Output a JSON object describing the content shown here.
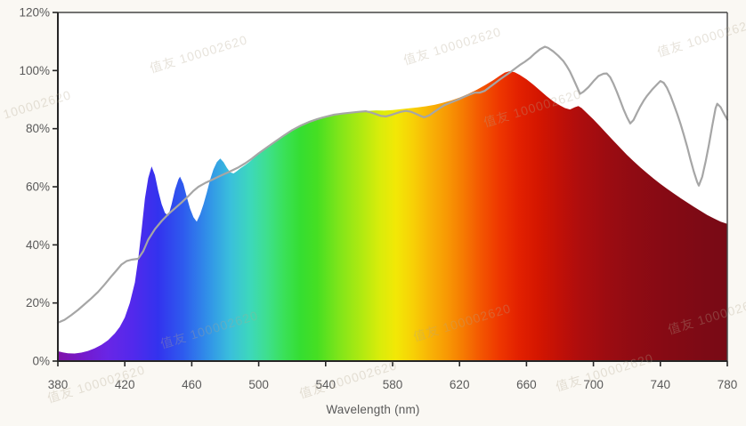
{
  "figure": {
    "background": "#faf8f3",
    "plot_background": "#ffffff",
    "axis_color": "#262626",
    "border_color": "#454545",
    "tick_label_color": "#595959",
    "watermark": {
      "text": "值友 100002620",
      "color": "#b3a68e",
      "opacity": 0.32,
      "rotation_deg": -17,
      "positions": [
        [
          170,
          82
        ],
        [
          455,
          73
        ],
        [
          740,
          64
        ],
        [
          -28,
          144
        ],
        [
          545,
          143
        ],
        [
          182,
          392
        ],
        [
          466,
          384
        ],
        [
          752,
          376
        ],
        [
          55,
          453
        ],
        [
          338,
          448
        ],
        [
          626,
          440
        ]
      ]
    }
  },
  "chart_data": {
    "type": "area",
    "title": "",
    "xlabel": "Wavelength (nm)",
    "ylabel": "",
    "xlim": [
      380,
      780
    ],
    "ylim_percent": [
      0,
      120
    ],
    "x_ticks": [
      380,
      420,
      460,
      500,
      540,
      580,
      620,
      660,
      700,
      740,
      780
    ],
    "y_ticks": [
      {
        "value": 0,
        "label": "0%"
      },
      {
        "value": 20,
        "label": "20%"
      },
      {
        "value": 40,
        "label": "40%"
      },
      {
        "value": 60,
        "label": "60%"
      },
      {
        "value": 80,
        "label": "80%"
      },
      {
        "value": 100,
        "label": "100%"
      },
      {
        "value": 120,
        "label": "120%"
      }
    ],
    "grid": false,
    "legend": "none",
    "spectrum_gradient_stops": [
      [
        380,
        "#8012a8"
      ],
      [
        395,
        "#7519cc"
      ],
      [
        410,
        "#6826e6"
      ],
      [
        425,
        "#5229ec"
      ],
      [
        440,
        "#3333ee"
      ],
      [
        455,
        "#2e5bee"
      ],
      [
        470,
        "#3192e8"
      ],
      [
        483,
        "#3abfdc"
      ],
      [
        495,
        "#3dd8bb"
      ],
      [
        505,
        "#3edf8e"
      ],
      [
        515,
        "#3ae159"
      ],
      [
        525,
        "#35de31"
      ],
      [
        535,
        "#46df22"
      ],
      [
        548,
        "#7fe51a"
      ],
      [
        560,
        "#abe912"
      ],
      [
        572,
        "#d8ec0b"
      ],
      [
        582,
        "#f2e806"
      ],
      [
        592,
        "#f7d106"
      ],
      [
        602,
        "#f8b406"
      ],
      [
        612,
        "#f89a04"
      ],
      [
        622,
        "#f67b02"
      ],
      [
        633,
        "#f35501"
      ],
      [
        644,
        "#ee3600"
      ],
      [
        655,
        "#e32100"
      ],
      [
        667,
        "#d41600"
      ],
      [
        680,
        "#c01007"
      ],
      [
        693,
        "#ac0d0e"
      ],
      [
        708,
        "#9c0c11"
      ],
      [
        725,
        "#8f0b13"
      ],
      [
        745,
        "#850a14"
      ],
      [
        765,
        "#7d0a15"
      ],
      [
        780,
        "#780a15"
      ]
    ],
    "series": [
      {
        "name": "visible-spectrum-spd",
        "type": "area",
        "fill": "spectral-gradient",
        "points": [
          [
            380,
            3.4
          ],
          [
            383,
            3.0
          ],
          [
            386,
            2.7
          ],
          [
            390,
            2.6
          ],
          [
            394,
            2.9
          ],
          [
            398,
            3.5
          ],
          [
            402,
            4.4
          ],
          [
            406,
            5.6
          ],
          [
            410,
            7.2
          ],
          [
            414,
            9.5
          ],
          [
            417,
            11.8
          ],
          [
            420,
            15
          ],
          [
            423,
            20
          ],
          [
            426,
            27
          ],
          [
            428,
            35
          ],
          [
            430,
            45
          ],
          [
            432,
            56
          ],
          [
            434,
            63
          ],
          [
            436,
            67
          ],
          [
            438,
            64
          ],
          [
            440,
            58.5
          ],
          [
            442,
            54
          ],
          [
            444,
            51
          ],
          [
            446,
            50
          ],
          [
            448,
            54
          ],
          [
            450,
            59
          ],
          [
            452,
            62.5
          ],
          [
            453,
            63.5
          ],
          [
            455,
            61
          ],
          [
            457,
            56.5
          ],
          [
            459,
            52.5
          ],
          [
            461,
            49.5
          ],
          [
            463,
            48
          ],
          [
            465,
            50.5
          ],
          [
            467,
            54
          ],
          [
            469,
            58
          ],
          [
            471,
            62.5
          ],
          [
            473,
            66
          ],
          [
            475,
            68.5
          ],
          [
            477,
            69.7
          ],
          [
            479,
            68.5
          ],
          [
            481,
            66.5
          ],
          [
            483,
            65
          ],
          [
            485,
            64.6
          ],
          [
            487,
            65.4
          ],
          [
            489,
            66.3
          ],
          [
            492,
            67.5
          ],
          [
            495,
            68.8
          ],
          [
            498,
            70.3
          ],
          [
            502,
            72.3
          ],
          [
            506,
            74
          ],
          [
            510,
            75.8
          ],
          [
            514,
            77.5
          ],
          [
            518,
            79
          ],
          [
            522,
            80.4
          ],
          [
            526,
            81.6
          ],
          [
            530,
            82.6
          ],
          [
            534,
            83.4
          ],
          [
            538,
            84.1
          ],
          [
            542,
            84.6
          ],
          [
            546,
            85
          ],
          [
            550,
            85.3
          ],
          [
            555,
            85.6
          ],
          [
            560,
            85.9
          ],
          [
            565,
            86.1
          ],
          [
            570,
            86.3
          ],
          [
            575,
            86.2
          ],
          [
            580,
            86.4
          ],
          [
            585,
            86.7
          ],
          [
            590,
            87
          ],
          [
            595,
            87.3
          ],
          [
            600,
            87.7
          ],
          [
            605,
            88.2
          ],
          [
            610,
            88.9
          ],
          [
            615,
            89.7
          ],
          [
            620,
            90.7
          ],
          [
            625,
            91.9
          ],
          [
            630,
            93.3
          ],
          [
            635,
            94.9
          ],
          [
            640,
            96.6
          ],
          [
            644,
            98.2
          ],
          [
            647,
            99.3
          ],
          [
            650,
            99.8
          ],
          [
            653,
            99.4
          ],
          [
            656,
            98.5
          ],
          [
            660,
            97
          ],
          [
            664,
            95.2
          ],
          [
            668,
            93.2
          ],
          [
            672,
            91.2
          ],
          [
            676,
            89.4
          ],
          [
            680,
            88
          ],
          [
            683,
            87.1
          ],
          [
            686,
            86.6
          ],
          [
            689,
            87.4
          ],
          [
            691,
            87.8
          ],
          [
            693,
            87.1
          ],
          [
            696,
            85.4
          ],
          [
            700,
            83.2
          ],
          [
            704,
            80.8
          ],
          [
            708,
            78.3
          ],
          [
            712,
            75.8
          ],
          [
            716,
            73.4
          ],
          [
            720,
            71
          ],
          [
            724,
            68.8
          ],
          [
            728,
            66.7
          ],
          [
            732,
            64.7
          ],
          [
            736,
            62.8
          ],
          [
            740,
            61
          ],
          [
            744,
            59.3
          ],
          [
            748,
            57.7
          ],
          [
            752,
            56.1
          ],
          [
            756,
            54.6
          ],
          [
            760,
            53.1
          ],
          [
            764,
            51.7
          ],
          [
            768,
            50.3
          ],
          [
            772,
            49.1
          ],
          [
            776,
            48
          ],
          [
            780,
            47.2
          ]
        ]
      },
      {
        "name": "reference-curve",
        "type": "line",
        "color": "#a6a6a6",
        "width": 2.2,
        "points": [
          [
            380,
            13.2
          ],
          [
            384,
            14.2
          ],
          [
            388,
            15.8
          ],
          [
            392,
            17.6
          ],
          [
            396,
            19.6
          ],
          [
            400,
            21.6
          ],
          [
            404,
            23.8
          ],
          [
            408,
            26.4
          ],
          [
            412,
            29.2
          ],
          [
            415,
            31.2
          ],
          [
            418,
            33.2
          ],
          [
            421,
            34.4
          ],
          [
            424,
            34.9
          ],
          [
            428,
            35.2
          ],
          [
            431,
            37.8
          ],
          [
            434,
            41.8
          ],
          [
            438,
            45.4
          ],
          [
            442,
            48.2
          ],
          [
            446,
            50.6
          ],
          [
            450,
            52.6
          ],
          [
            454,
            54.6
          ],
          [
            458,
            56.8
          ],
          [
            461,
            58.6
          ],
          [
            464,
            60
          ],
          [
            468,
            61.3
          ],
          [
            472,
            62.4
          ],
          [
            476,
            63.5
          ],
          [
            480,
            64.5
          ],
          [
            484,
            65.6
          ],
          [
            488,
            66.7
          ],
          [
            492,
            68.1
          ],
          [
            496,
            69.7
          ],
          [
            500,
            71.5
          ],
          [
            505,
            73.6
          ],
          [
            510,
            75.6
          ],
          [
            515,
            77.6
          ],
          [
            520,
            79.5
          ],
          [
            525,
            81
          ],
          [
            530,
            82.3
          ],
          [
            535,
            83.3
          ],
          [
            540,
            84.1
          ],
          [
            545,
            84.8
          ],
          [
            550,
            85.2
          ],
          [
            555,
            85.5
          ],
          [
            560,
            85.8
          ],
          [
            564,
            86
          ],
          [
            567,
            85.6
          ],
          [
            570,
            85
          ],
          [
            573,
            84.4
          ],
          [
            576,
            84.2
          ],
          [
            579,
            84.7
          ],
          [
            582,
            85.3
          ],
          [
            585,
            85.8
          ],
          [
            588,
            86.1
          ],
          [
            591,
            85.8
          ],
          [
            594,
            85.1
          ],
          [
            597,
            84.3
          ],
          [
            599,
            83.9
          ],
          [
            602,
            84.6
          ],
          [
            605,
            85.8
          ],
          [
            608,
            87
          ],
          [
            611,
            88.1
          ],
          [
            614,
            88.8
          ],
          [
            617,
            89.5
          ],
          [
            620,
            90.2
          ],
          [
            623,
            91
          ],
          [
            626,
            91.7
          ],
          [
            629,
            92.4
          ],
          [
            632,
            92.4
          ],
          [
            635,
            93
          ],
          [
            638,
            94.3
          ],
          [
            641,
            95.6
          ],
          [
            644,
            96.9
          ],
          [
            647,
            98.1
          ],
          [
            650,
            99.3
          ],
          [
            653,
            100.6
          ],
          [
            656,
            101.9
          ],
          [
            659,
            103
          ],
          [
            662,
            104.3
          ],
          [
            665,
            105.9
          ],
          [
            668,
            107.3
          ],
          [
            671,
            108.2
          ],
          [
            673,
            107.8
          ],
          [
            676,
            106.6
          ],
          [
            679,
            105.1
          ],
          [
            682,
            103.3
          ],
          [
            684,
            101.6
          ],
          [
            686,
            99.6
          ],
          [
            688,
            97.2
          ],
          [
            690,
            94.6
          ],
          [
            692,
            92
          ],
          [
            694,
            92.7
          ],
          [
            697,
            94.3
          ],
          [
            700,
            96.3
          ],
          [
            703,
            98.1
          ],
          [
            706,
            98.9
          ],
          [
            708,
            99
          ],
          [
            710,
            97.7
          ],
          [
            712,
            95.4
          ],
          [
            714,
            92.7
          ],
          [
            716,
            89.7
          ],
          [
            718,
            86.7
          ],
          [
            720,
            84
          ],
          [
            722,
            81.8
          ],
          [
            724,
            83
          ],
          [
            726,
            85.4
          ],
          [
            728,
            87.6
          ],
          [
            730,
            89.6
          ],
          [
            732,
            91.3
          ],
          [
            735,
            93.4
          ],
          [
            738,
            95.2
          ],
          [
            740,
            96.4
          ],
          [
            742,
            95.8
          ],
          [
            744,
            94
          ],
          [
            746,
            91.4
          ],
          [
            748,
            88.4
          ],
          [
            750,
            85.2
          ],
          [
            752,
            81.7
          ],
          [
            754,
            77.9
          ],
          [
            756,
            73.8
          ],
          [
            758,
            69.4
          ],
          [
            760,
            65.2
          ],
          [
            762,
            61.6
          ],
          [
            763,
            60.4
          ],
          [
            765,
            63.4
          ],
          [
            767,
            68.6
          ],
          [
            769,
            74.4
          ],
          [
            771,
            81
          ],
          [
            773,
            87
          ],
          [
            774,
            88.6
          ],
          [
            776,
            87.4
          ],
          [
            778,
            85.2
          ],
          [
            780,
            83.1
          ]
        ]
      }
    ]
  }
}
